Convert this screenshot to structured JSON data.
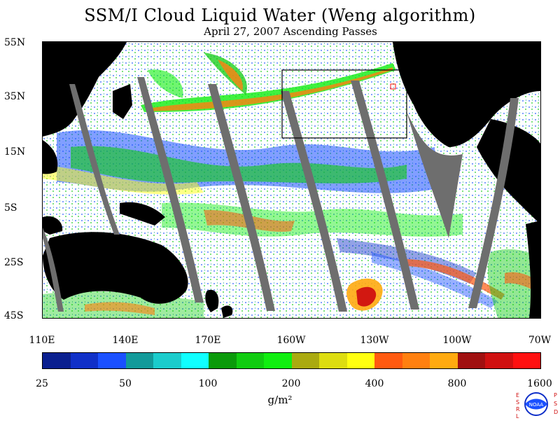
{
  "header": {
    "title": "SSM/I Cloud Liquid Water (Weng algorithm)",
    "subtitle": "April 27, 2007  Ascending Passes"
  },
  "map": {
    "latitude_labels": [
      "55N",
      "35N",
      "15N",
      "5S",
      "25S",
      "45S"
    ],
    "longitude_labels": [
      "110E",
      "140E",
      "170E",
      "160W",
      "130W",
      "100W",
      "70W"
    ],
    "colors": {
      "land": "#000000",
      "missing_swath": "#6e6e6e",
      "background": "#ffffff"
    }
  },
  "colorbar": {
    "labels": [
      "25",
      "50",
      "100",
      "200",
      "400",
      "800",
      "1600"
    ],
    "colors": [
      "#0a1f8f",
      "#1030c8",
      "#1a50ff",
      "#129a9a",
      "#1acccc",
      "#10ffff",
      "#0a9a0a",
      "#10cc10",
      "#10ee10",
      "#aaaa10",
      "#dddd10",
      "#ffff10",
      "#ff5a10",
      "#ff8010",
      "#ffaa10",
      "#a01010",
      "#d01010",
      "#ff1010"
    ],
    "unit": "g/m²"
  },
  "logo": {
    "left_letters": "ESRL",
    "right_letters": "PSD",
    "emblem_text": "NOAA"
  }
}
